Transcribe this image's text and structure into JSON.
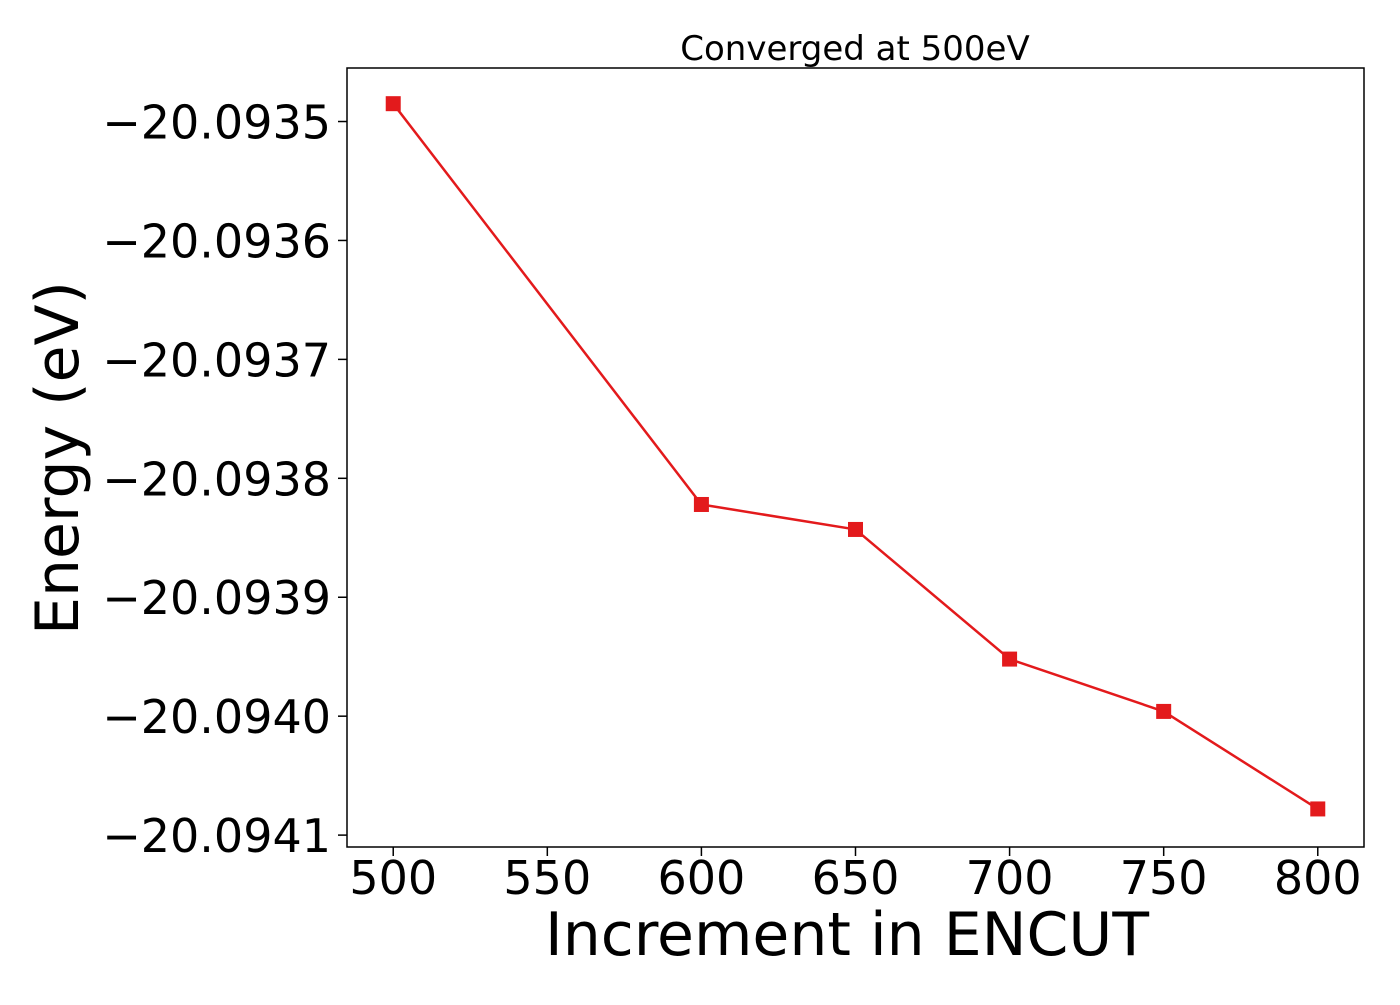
{
  "chart_data": {
    "type": "line",
    "title": "Converged at 500eV",
    "xlabel": "Increment in ENCUT",
    "ylabel": "Energy (eV)",
    "xlim": [
      485,
      815
    ],
    "ylim": [
      -20.09411,
      -20.093455
    ],
    "x_ticks": [
      500,
      550,
      600,
      650,
      700,
      750,
      800
    ],
    "x_tick_labels": [
      "500",
      "550",
      "600",
      "650",
      "700",
      "750",
      "800"
    ],
    "y_ticks": [
      -20.0935,
      -20.0936,
      -20.0937,
      -20.0938,
      -20.0939,
      -20.094,
      -20.0941
    ],
    "y_tick_labels": [
      "−20.0935",
      "−20.0936",
      "−20.0937",
      "−20.0938",
      "−20.0939",
      "−20.0940",
      "−20.0941"
    ],
    "grid": false,
    "series": [
      {
        "color": "#e31a1c",
        "marker": "square",
        "x": [
          500,
          600,
          650,
          700,
          750,
          800
        ],
        "y": [
          -20.093485,
          -20.093822,
          -20.093843,
          -20.093952,
          -20.093996,
          -20.094078
        ]
      }
    ]
  }
}
